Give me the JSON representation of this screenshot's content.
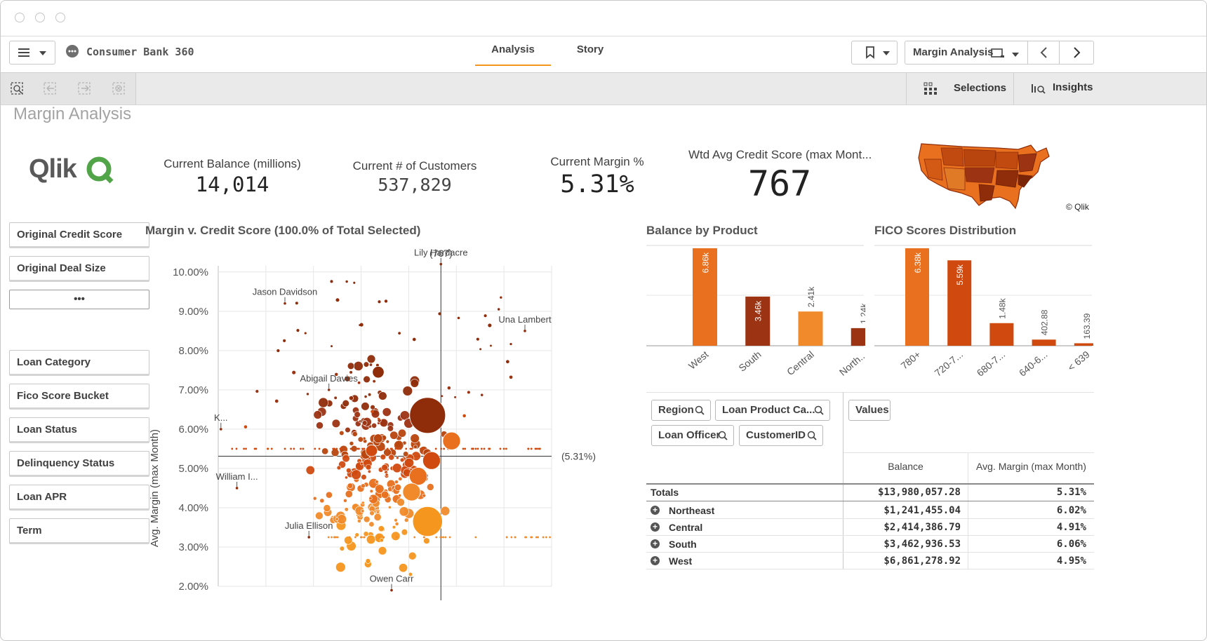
{
  "app": {
    "name": "Consumer Bank 360"
  },
  "tabs": [
    {
      "label": "Analysis",
      "active": true
    },
    {
      "label": "Story",
      "active": false
    }
  ],
  "sheet_selector": {
    "label": "Margin Analysis"
  },
  "toolbar": {
    "selections_label": "Selections",
    "insights_label": "Insights"
  },
  "sheet": {
    "title": "Margin Analysis"
  },
  "logo": {
    "text": "Qlik",
    "copyright": "© Qlik"
  },
  "kpis": [
    {
      "label": "Current Balance (millions)",
      "value": "14,014"
    },
    {
      "label": "Current # of Customers",
      "value": "537,829"
    },
    {
      "label": "Current Margin %",
      "value": "5.31%"
    },
    {
      "label": "Wtd Avg Credit Score (max Mont...",
      "value": "767"
    }
  ],
  "filters_top": [
    "Original Credit Score",
    "Original Deal Size"
  ],
  "filters_more": "•••",
  "filters_bottom": [
    "Loan Category",
    "Fico Score Bucket",
    "Loan Status",
    "Delinquency Status",
    "Loan APR",
    "Term"
  ],
  "scatter": {
    "title": "Margin v. Credit Score (100.0% of Total Selected)",
    "ylabel": "Avg. Margin (max Month)",
    "ref_x_label": "(767)",
    "ref_y_label": "(5.31%)"
  },
  "chart_data": [
    {
      "type": "scatter",
      "title": "Margin v. Credit Score (100.0% of Total Selected)",
      "ylabel": "Avg. Margin (max Month)",
      "y_ticks": [
        "10.00%",
        "9.00%",
        "8.00%",
        "7.00%",
        "6.00%",
        "5.00%",
        "4.00%",
        "3.00%",
        "2.00%"
      ],
      "ylim": [
        2.0,
        10.3
      ],
      "xlim": [
        600,
        850
      ],
      "reference_lines": {
        "x": 767,
        "y": 5.31
      },
      "labeled_points": [
        {
          "label": "Jason Davidson",
          "x": 650,
          "y": 9.2
        },
        {
          "label": "Lily Hardacre",
          "x": 767,
          "y": 10.2
        },
        {
          "label": "Una Lambert",
          "x": 830,
          "y": 8.5
        },
        {
          "label": "Abigail Davies",
          "x": 683,
          "y": 7.0
        },
        {
          "label": "K...",
          "x": 602,
          "y": 6.0
        },
        {
          "label": "William I...",
          "x": 614,
          "y": 4.5
        },
        {
          "label": "Julia Ellison",
          "x": 668,
          "y": 3.25
        },
        {
          "label": "Owen Carr",
          "x": 730,
          "y": 1.9
        }
      ],
      "bubbles": [
        {
          "x": 757,
          "y": 6.35,
          "size": 5,
          "color": "#8f2c0a"
        },
        {
          "x": 757,
          "y": 3.65,
          "size": 4,
          "color": "#f5961e"
        },
        {
          "x": 720,
          "y": 7.45,
          "size": 1,
          "color": "#8f2c0a"
        },
        {
          "x": 715,
          "y": 5.45,
          "size": 1,
          "color": "#d04a0f"
        },
        {
          "x": 760,
          "y": 5.2,
          "size": 2,
          "color": "#d04a0f"
        },
        {
          "x": 750,
          "y": 4.8,
          "size": 2,
          "color": "#e8701e"
        },
        {
          "x": 745,
          "y": 4.4,
          "size": 2,
          "color": "#f08a2a"
        },
        {
          "x": 775,
          "y": 5.7,
          "size": 2,
          "color": "#e8701e"
        }
      ]
    },
    {
      "type": "bar",
      "title": "Balance by Product",
      "categories": [
        "West",
        "South",
        "Central",
        "North..."
      ],
      "values": [
        6860,
        3460,
        2410,
        1240
      ],
      "value_labels": [
        "6.86k",
        "3.46k",
        "2.41k",
        "1.24k"
      ],
      "colors": [
        "#e8701e",
        "#9c3312",
        "#f08a2a",
        "#9c3312"
      ]
    },
    {
      "type": "bar",
      "title": "FICO Scores Distribution",
      "categories": [
        "780+",
        "720-7...",
        "680-7...",
        "640-6...",
        "< 639"
      ],
      "values": [
        6380,
        5590,
        1480,
        402.88,
        163.39
      ],
      "value_labels": [
        "6.38k",
        "5.59k",
        "1.48k",
        "402.88",
        "163.39"
      ],
      "colors": [
        "#e8701e",
        "#d04a0f",
        "#d04a0f",
        "#d04a0f",
        "#d04a0f"
      ]
    },
    {
      "type": "table",
      "dimensions": [
        "Region",
        "Loan Product Ca...",
        "Loan Officer",
        "CustomerID"
      ],
      "values_button": "Values",
      "columns": [
        "Balance",
        "Avg. Margin (max Month)"
      ],
      "totals": {
        "label": "Totals",
        "balance": "$13,980,057.28",
        "margin": "5.31%"
      },
      "rows": [
        {
          "label": "Northeast",
          "balance": "$1,241,455.04",
          "margin": "6.02%"
        },
        {
          "label": "Central",
          "balance": "$2,414,386.79",
          "margin": "4.91%"
        },
        {
          "label": "South",
          "balance": "$3,462,936.53",
          "margin": "6.06%"
        },
        {
          "label": "West",
          "balance": "$6,861,278.92",
          "margin": "4.95%"
        }
      ]
    }
  ],
  "colors": {
    "accent": "#f5961e",
    "dark": "#9c3312",
    "mid": "#d04a0f",
    "light": "#e8701e",
    "qlik_green": "#52a448"
  }
}
